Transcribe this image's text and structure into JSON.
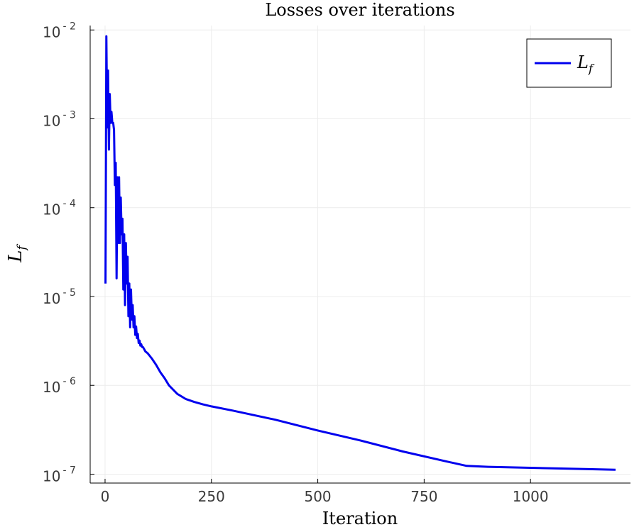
{
  "chart_data": {
    "type": "line",
    "title": "Losses over iterations",
    "xlabel": "Iteration",
    "ylabel": {
      "main": "L",
      "sub": "f"
    },
    "yscale": "log10",
    "xlim": [
      -35,
      1235
    ],
    "ylim_log10": [
      -7.1,
      -1.95
    ],
    "x_ticks": [
      0,
      250,
      500,
      750,
      1000
    ],
    "x_tick_labels": [
      "0",
      "250",
      "500",
      "750",
      "1000"
    ],
    "y_ticks_exponent": [
      -7,
      -6,
      -5,
      -4,
      -3,
      -2
    ],
    "y_tick_base": "10",
    "y_tick_exp_labels": [
      "- 7",
      "- 6",
      "- 5",
      "- 4",
      "- 3",
      "- 2"
    ],
    "grid": true,
    "legend": {
      "position": "top-right",
      "entries": [
        {
          "main": "L",
          "sub": "f",
          "color": "#0000ee"
        }
      ]
    },
    "series": [
      {
        "color": "#0000ee",
        "x": [
          1,
          3,
          5,
          7,
          9,
          11,
          13,
          15,
          17,
          19,
          21,
          23,
          25,
          27,
          29,
          31,
          33,
          35,
          37,
          39,
          41,
          43,
          45,
          47,
          49,
          51,
          53,
          55,
          57,
          59,
          61,
          63,
          65,
          67,
          69,
          71,
          73,
          75,
          77,
          79,
          81,
          83,
          85,
          87,
          89,
          91,
          95,
          100,
          110,
          120,
          130,
          140,
          150,
          170,
          190,
          210,
          230,
          250,
          300,
          400,
          500,
          600,
          700,
          800,
          850,
          900,
          1000,
          1100,
          1200
        ],
        "y": [
          1.4e-05,
          0.0085,
          0.0008,
          0.0035,
          0.00045,
          0.0019,
          0.0009,
          0.0012,
          0.0009,
          0.0009,
          0.00075,
          0.00018,
          0.00032,
          1.6e-05,
          0.00022,
          4e-05,
          0.00022,
          4e-05,
          0.00013,
          5e-05,
          7.5e-05,
          1.2e-05,
          5e-05,
          8e-06,
          4e-05,
          1.4e-05,
          2.8e-05,
          6e-06,
          1.4e-05,
          4.5e-06,
          1.2e-05,
          5.5e-06,
          8e-06,
          4.5e-06,
          6e-06,
          3.7e-06,
          4.6e-06,
          3.4e-06,
          3.8e-06,
          3e-06,
          3.2e-06,
          2.8e-06,
          2.9e-06,
          2.7e-06,
          2.7e-06,
          2.6e-06,
          2.4e-06,
          2.3e-06,
          2e-06,
          1.7e-06,
          1.4e-06,
          1.2e-06,
          1e-06,
          8e-07,
          7e-07,
          6.5e-07,
          6.1e-07,
          5.8e-07,
          5.2e-07,
          4.1e-07,
          3.1e-07,
          2.4e-07,
          1.8e-07,
          1.4e-07,
          1.24e-07,
          1.21e-07,
          1.18e-07,
          1.15e-07,
          1.12e-07
        ]
      }
    ]
  }
}
